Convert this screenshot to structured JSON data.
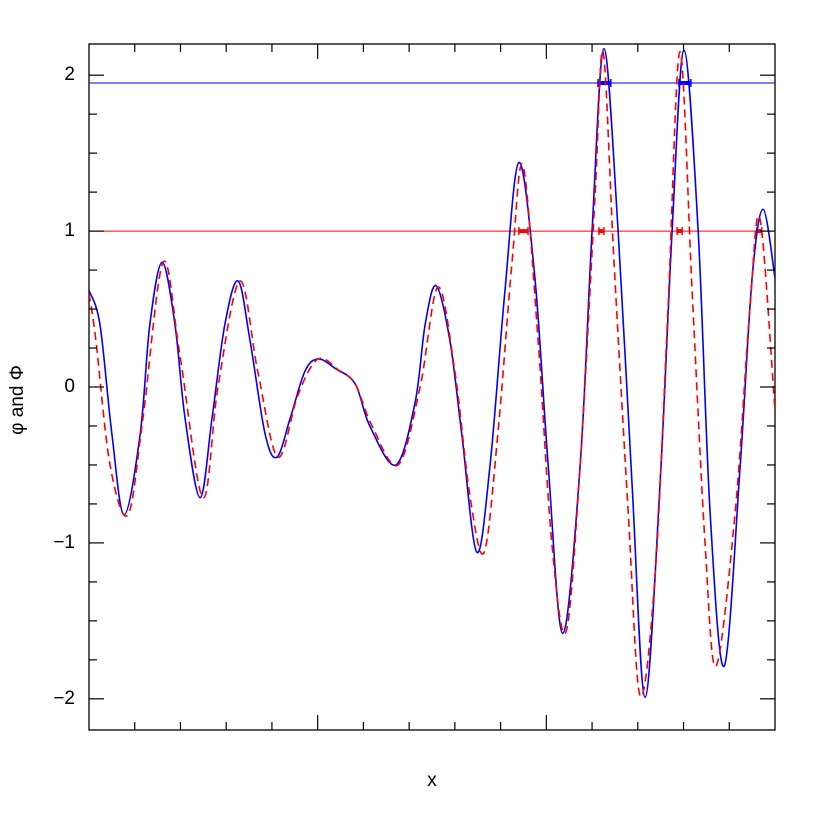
{
  "chart_data": {
    "type": "line",
    "x_label": "x",
    "y_label": "φ  and  Φ",
    "xlim": [
      0,
      15
    ],
    "xticks": [
      1,
      2,
      3,
      4,
      5,
      6,
      7,
      8,
      9,
      10,
      11,
      12,
      13,
      14
    ],
    "xmajor_every": 5,
    "ylim": [
      -2.2,
      2.2
    ],
    "yticks": [
      {
        "value": -2,
        "label": "−2"
      },
      {
        "value": -1,
        "label": "−1"
      },
      0,
      1,
      2
    ],
    "yminorticks": [
      -1.75,
      -1.5,
      -1.25,
      -0.75,
      -0.5,
      -0.25,
      0.25,
      0.5,
      0.75,
      1.25,
      1.5,
      1.75
    ],
    "series": [
      {
        "color": "#0000ff",
        "linestyle": "solid",
        "x": [
          0,
          0.24,
          0.5,
          0.77,
          1.12,
          1.33,
          1.6,
          1.88,
          2.1,
          2.43,
          2.69,
          2.97,
          3.26,
          3.52,
          3.85,
          4.11,
          4.4,
          4.72,
          5.01,
          5.38,
          5.82,
          6.14,
          6.71,
          7.13,
          7.35,
          7.59,
          7.89,
          8.15,
          8.48,
          8.77,
          9.09,
          9.4,
          9.75,
          10.04,
          10.36,
          10.74,
          11.0,
          11.26,
          11.57,
          11.87,
          12.16,
          12.49,
          12.75,
          13.01,
          13.32,
          13.58,
          13.89,
          14.24,
          14.5,
          14.74,
          15.0
        ],
        "values": [
          0.62,
          0.4,
          -0.3,
          -0.82,
          -0.3,
          0.4,
          0.8,
          0.4,
          -0.2,
          -0.71,
          -0.2,
          0.4,
          0.68,
          0.3,
          -0.3,
          -0.45,
          -0.2,
          0.1,
          0.18,
          0.12,
          0.02,
          -0.25,
          -0.5,
          -0.1,
          0.4,
          0.65,
          0.3,
          -0.3,
          -1.06,
          -0.5,
          0.6,
          1.44,
          0.7,
          -0.5,
          -1.58,
          -0.5,
          1.0,
          2.17,
          1.0,
          -0.6,
          -1.99,
          -0.6,
          1.0,
          2.16,
          1.0,
          -0.8,
          -1.79,
          -0.5,
          0.7,
          1.14,
          0.7
        ]
      },
      {
        "color": "#ff0000",
        "linestyle": "dashed",
        "x": [
          0,
          0.15,
          0.46,
          0.85,
          1.18,
          1.62,
          1.99,
          2.49,
          2.82,
          3.3,
          3.69,
          4.13,
          4.57,
          5.01,
          5.49,
          5.82,
          6.19,
          6.76,
          7.24,
          7.63,
          8.0,
          8.33,
          8.64,
          8.94,
          9.25,
          9.49,
          9.82,
          10.12,
          10.43,
          10.74,
          11.06,
          11.24,
          11.48,
          11.79,
          12.05,
          12.38,
          12.66,
          12.92,
          13.19,
          13.47,
          13.71,
          14.13,
          14.45,
          14.67,
          15.0
        ],
        "values": [
          0.6,
          0.3,
          -0.5,
          -0.82,
          -0.2,
          0.8,
          0.2,
          -0.71,
          0,
          0.68,
          0.1,
          -0.45,
          -0.05,
          0.18,
          0.1,
          0.02,
          -0.25,
          -0.5,
          0,
          0.64,
          0.1,
          -0.7,
          -1.06,
          -0.3,
          0.8,
          1.42,
          0.3,
          -1.0,
          -1.57,
          -0.5,
          1.2,
          2.15,
          0.8,
          -0.8,
          -1.98,
          -1.2,
          0.5,
          2.15,
          0.6,
          -1.0,
          -1.79,
          -0.8,
          0.5,
          1.08,
          -0.15
        ]
      }
    ],
    "hlines": [
      {
        "value": 1.95,
        "color": "#0000ff",
        "intervals": [
          [
            11.13,
            11.41
          ],
          [
            12.9,
            13.16
          ]
        ]
      },
      {
        "value": 1,
        "color": "#ff0000",
        "intervals": [
          [
            9.4,
            9.6
          ],
          [
            11.15,
            11.26
          ],
          [
            12.86,
            12.97
          ],
          [
            14.6,
            14.71
          ]
        ]
      }
    ]
  }
}
